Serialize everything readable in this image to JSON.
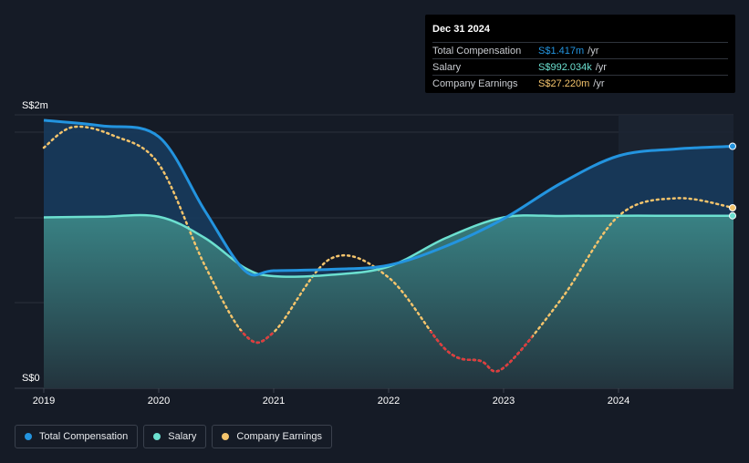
{
  "chart_data": {
    "type": "area",
    "currency_axis": {
      "top_label": "S$2m",
      "bottom_label": "S$0"
    },
    "x_ticks": [
      "2019",
      "2020",
      "2021",
      "2022",
      "2023",
      "2024"
    ],
    "ylim": [
      0,
      2000000
    ],
    "series": [
      {
        "name": "Total Compensation",
        "color": "#2394df",
        "points": [
          [
            2019.0,
            1960000
          ],
          [
            2019.5,
            1920000
          ],
          [
            2020.0,
            1840000
          ],
          [
            2020.4,
            1300000
          ],
          [
            2020.75,
            860000
          ],
          [
            2021.0,
            860000
          ],
          [
            2021.5,
            870000
          ],
          [
            2022.0,
            900000
          ],
          [
            2022.5,
            1040000
          ],
          [
            2023.0,
            1240000
          ],
          [
            2023.5,
            1500000
          ],
          [
            2024.0,
            1700000
          ],
          [
            2024.5,
            1750000
          ],
          [
            2025.0,
            1770000
          ]
        ]
      },
      {
        "name": "Salary",
        "color": "#6ce0d0",
        "points": [
          [
            2019.0,
            1250000
          ],
          [
            2019.5,
            1255000
          ],
          [
            2020.0,
            1255000
          ],
          [
            2020.4,
            1100000
          ],
          [
            2020.75,
            880000
          ],
          [
            2021.0,
            820000
          ],
          [
            2021.5,
            830000
          ],
          [
            2022.0,
            890000
          ],
          [
            2022.5,
            1100000
          ],
          [
            2023.0,
            1250000
          ],
          [
            2023.5,
            1260000
          ],
          [
            2024.0,
            1262000
          ],
          [
            2024.5,
            1262000
          ],
          [
            2025.0,
            1262000
          ]
        ]
      },
      {
        "name": "Company Earnings",
        "color": "#f4c46c",
        "negative_color": "#e0393e",
        "points": [
          [
            2019.0,
            1760000
          ],
          [
            2019.25,
            1910000
          ],
          [
            2019.6,
            1850000
          ],
          [
            2020.0,
            1640000
          ],
          [
            2020.4,
            900000
          ],
          [
            2020.75,
            390000
          ],
          [
            2021.0,
            410000
          ],
          [
            2021.5,
            950000
          ],
          [
            2022.0,
            810000
          ],
          [
            2022.5,
            280000
          ],
          [
            2022.8,
            200000
          ],
          [
            2023.0,
            150000
          ],
          [
            2023.5,
            650000
          ],
          [
            2024.0,
            1260000
          ],
          [
            2024.5,
            1390000
          ],
          [
            2025.0,
            1320000
          ]
        ]
      }
    ],
    "highlight_from": 2024.0
  },
  "tooltip": {
    "date": "Dec 31 2024",
    "rows": [
      {
        "label": "Total Compensation",
        "value": "S$1.417m",
        "unit": "/yr",
        "color": "#2394df"
      },
      {
        "label": "Salary",
        "value": "S$992.034k",
        "unit": "/yr",
        "color": "#6ce0d0"
      },
      {
        "label": "Company Earnings",
        "value": "S$27.220m",
        "unit": "/yr",
        "color": "#f4c46c"
      }
    ]
  },
  "legend": [
    {
      "label": "Total Compensation",
      "color": "#2394df"
    },
    {
      "label": "Salary",
      "color": "#6ce0d0"
    },
    {
      "label": "Company Earnings",
      "color": "#f4c46c"
    }
  ]
}
